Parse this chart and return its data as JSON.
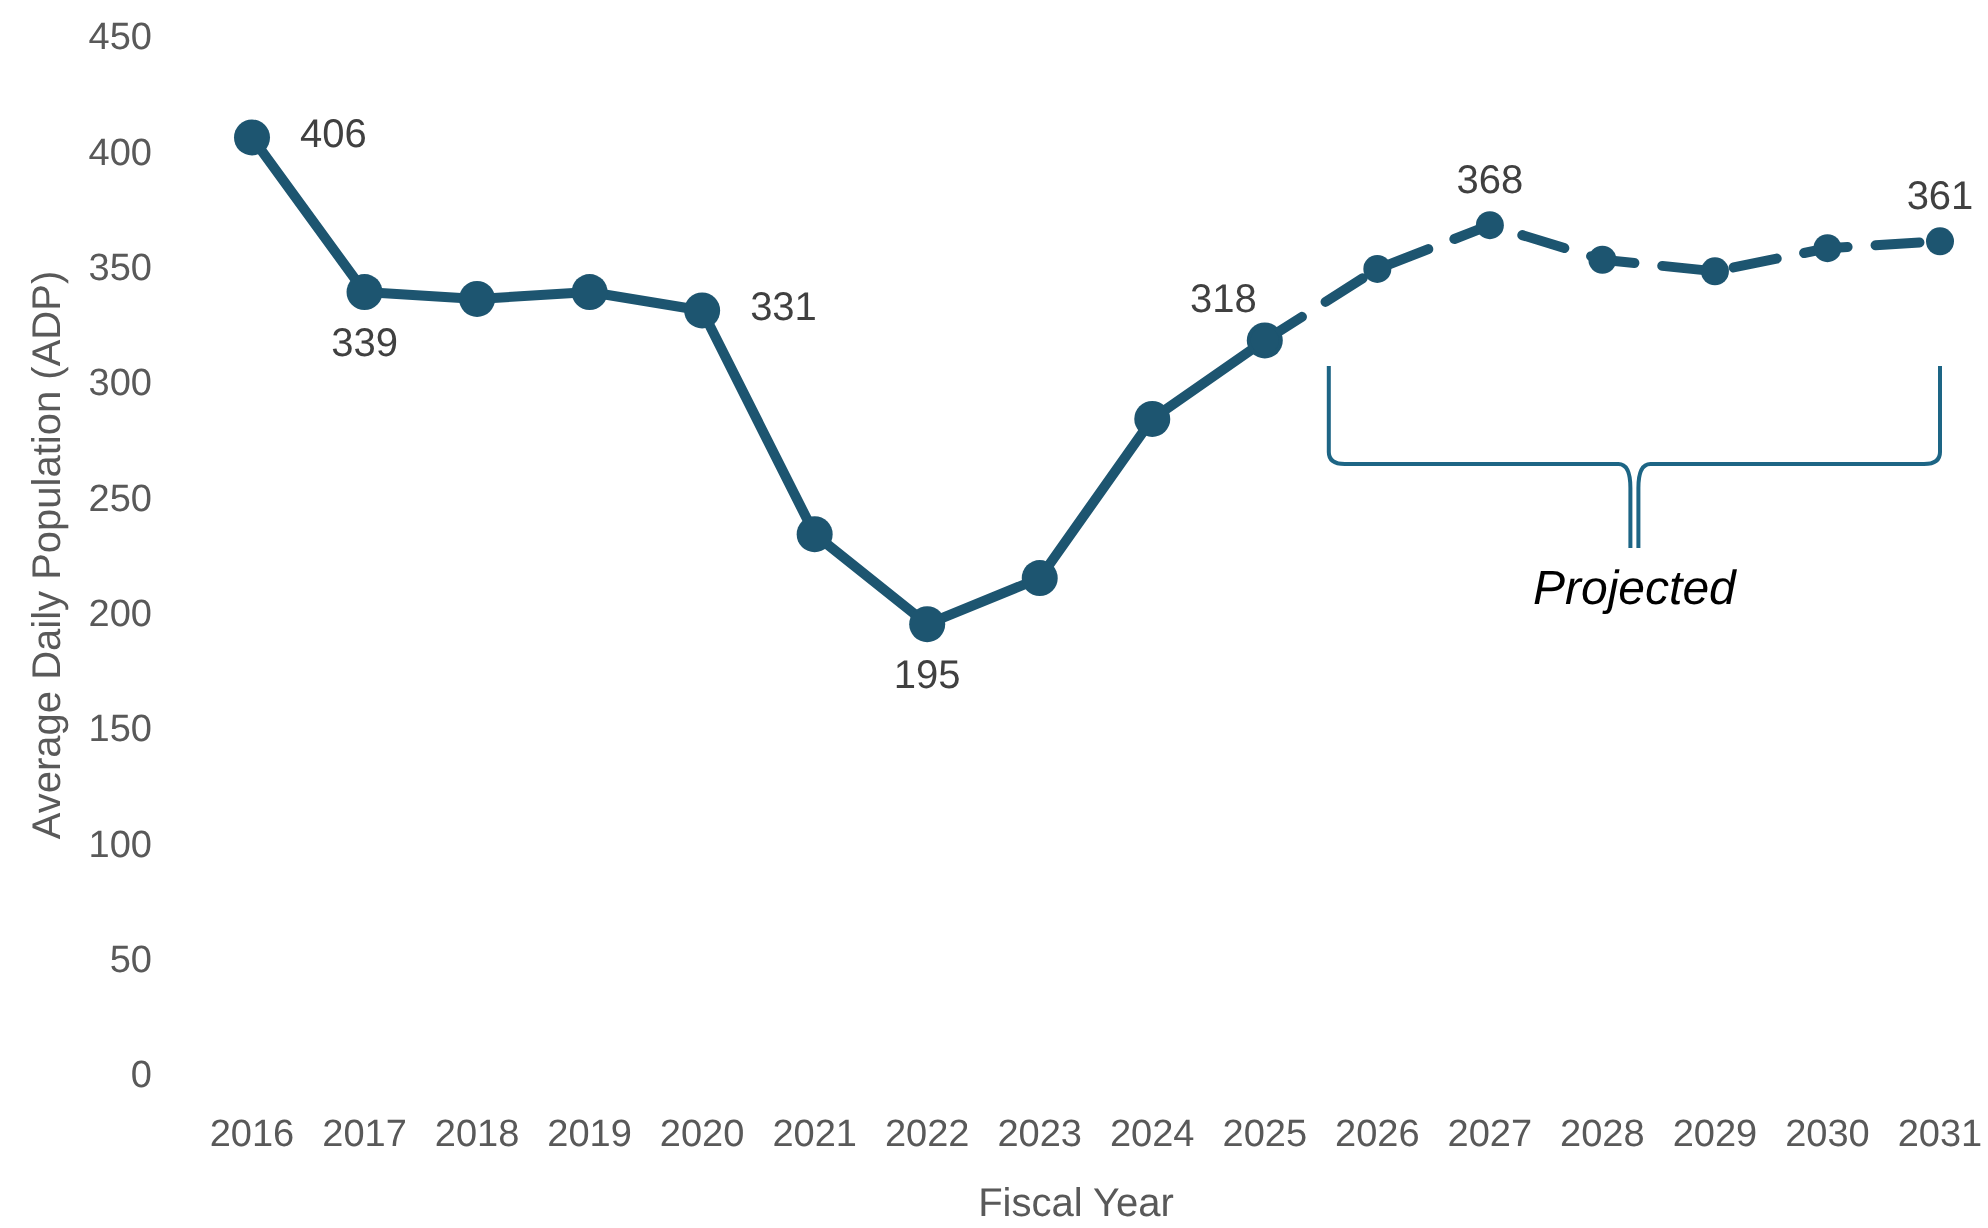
{
  "chart_data": {
    "type": "line",
    "xlabel": "Fiscal Year",
    "ylabel": "Average Daily Population (ADP)",
    "categories": [
      "2016",
      "2017",
      "2018",
      "2019",
      "2020",
      "2021",
      "2022",
      "2023",
      "2024",
      "2025",
      "2026",
      "2027",
      "2028",
      "2029",
      "2030",
      "2031"
    ],
    "ylim": [
      0,
      450
    ],
    "yticks": [
      0,
      50,
      100,
      150,
      200,
      250,
      300,
      350,
      400,
      450
    ],
    "grid": false,
    "marker": "circle",
    "series": [
      {
        "color": "#1d5570",
        "line_style": "solid",
        "values": [
          406,
          339,
          336,
          339,
          331,
          234,
          195,
          215,
          284,
          318,
          null,
          null,
          null,
          null,
          null,
          null
        ],
        "value_labels": [
          "406",
          "339",
          null,
          null,
          "331",
          null,
          "195",
          null,
          null,
          "318",
          null,
          null,
          null,
          null,
          null,
          null
        ]
      },
      {
        "color": "#1d5570",
        "line_style": "dashed",
        "values": [
          null,
          null,
          null,
          null,
          null,
          null,
          null,
          null,
          null,
          318,
          349,
          368,
          353,
          348,
          358,
          361
        ],
        "value_labels": [
          null,
          null,
          null,
          null,
          null,
          null,
          null,
          null,
          null,
          null,
          null,
          "368",
          null,
          null,
          null,
          "361"
        ]
      }
    ],
    "annotations": [
      "Projected"
    ]
  }
}
